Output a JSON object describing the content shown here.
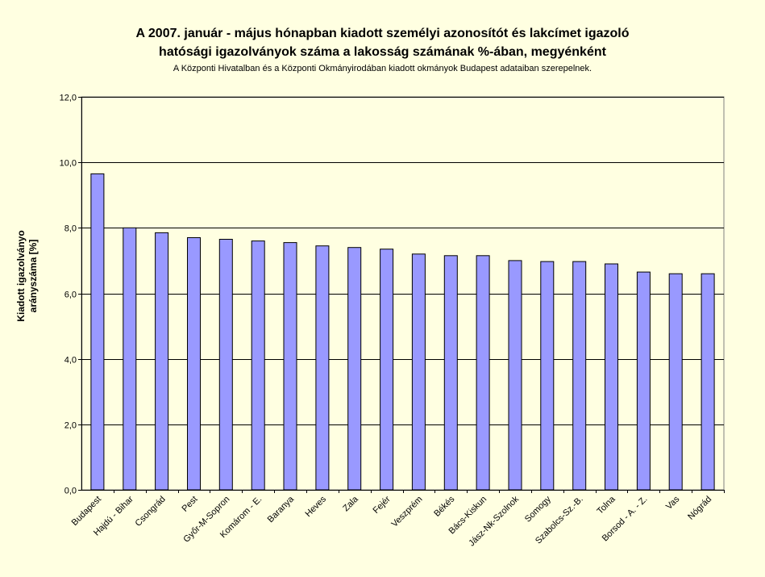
{
  "chart_data": {
    "type": "bar",
    "title_line1": "A 2007. január - május hónapban kiadott személyi azonosítót és lakcímet igazoló",
    "title_line2": "hatósági igazolványok száma a lakosság  számának %-ában, megyénként",
    "subtitle": "A Központi Hivatalban és a Központi Okmányirodában kiadott okmányok Budapest adataiban szerepelnek.",
    "ylabel_line1": "Kiadott igazolványo",
    "ylabel_line2": "arányszáma [%]",
    "xlabel": "",
    "ylim": [
      0,
      12
    ],
    "yticks": [
      "0,0",
      "2,0",
      "4,0",
      "6,0",
      "8,0",
      "10,0",
      "12,0"
    ],
    "grid": true,
    "legend": "none",
    "categories": [
      "Budapest",
      "Hajdú - Bihar",
      "Csongrád",
      "Pest",
      "Győr-M-Sopron",
      "Komárom - E.",
      "Baranya",
      "Heves",
      "Zala",
      "Fejér",
      "Veszprém",
      "Békés",
      "Bács-Kiskun",
      "Jász-Nk-Szolnok",
      "Somogy",
      "Szabolcs-Sz.-B.",
      "Tolna",
      "Borsod - A. - Z.",
      "Vas",
      "Nógrád"
    ],
    "values": [
      9.65,
      8.0,
      7.85,
      7.7,
      7.65,
      7.6,
      7.55,
      7.45,
      7.4,
      7.35,
      7.2,
      7.15,
      7.15,
      7.0,
      6.97,
      6.97,
      6.9,
      6.65,
      6.6,
      6.6
    ],
    "colors": {
      "bar_fill": "#9999FF",
      "bar_stroke": "#000000",
      "plot_bg": "#FFFFE1",
      "page_bg": "#FFFFE1"
    }
  }
}
